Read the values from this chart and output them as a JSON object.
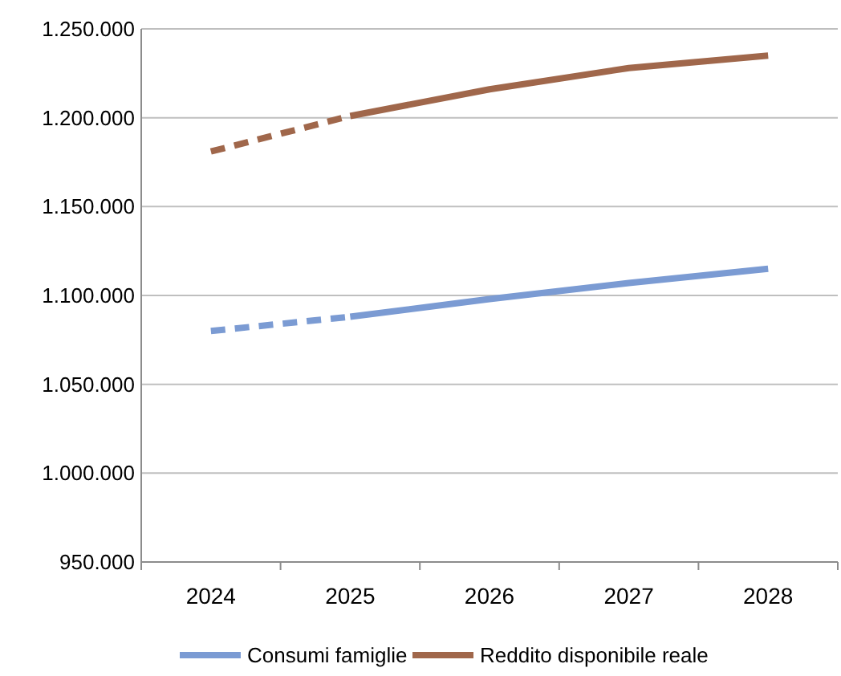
{
  "chart_data": {
    "type": "line",
    "categories": [
      "2024",
      "2025",
      "2026",
      "2027",
      "2028"
    ],
    "series": [
      {
        "color": "#7b9bd3",
        "line_style": "dashed",
        "values": [
          1080000,
          1088000,
          null,
          null,
          null
        ]
      },
      {
        "name": "Consumi famiglie",
        "color": "#7b9bd3",
        "line_style": "solid",
        "values": [
          null,
          1088000,
          1098000,
          1107000,
          1115000
        ]
      },
      {
        "color": "#a0674b",
        "line_style": "dashed",
        "values": [
          1181000,
          1201000,
          null,
          null,
          null
        ]
      },
      {
        "name": "Reddito disponibile reale",
        "color": "#a0674b",
        "line_style": "solid",
        "values": [
          null,
          1201000,
          1216000,
          1228000,
          1235000
        ]
      }
    ],
    "ylim": [
      950000,
      1250000
    ],
    "yticks": [
      {
        "value": 950000,
        "label": "950.000"
      },
      {
        "value": 1000000,
        "label": "1.000.000"
      },
      {
        "value": 1050000,
        "label": "1.050.000"
      },
      {
        "value": 1100000,
        "label": "1.100.000"
      },
      {
        "value": 1150000,
        "label": "1.150.000"
      },
      {
        "value": 1200000,
        "label": "1.200.000"
      },
      {
        "value": 1250000,
        "label": "1.250.000"
      }
    ],
    "grid": "y",
    "legend": "bottom"
  }
}
